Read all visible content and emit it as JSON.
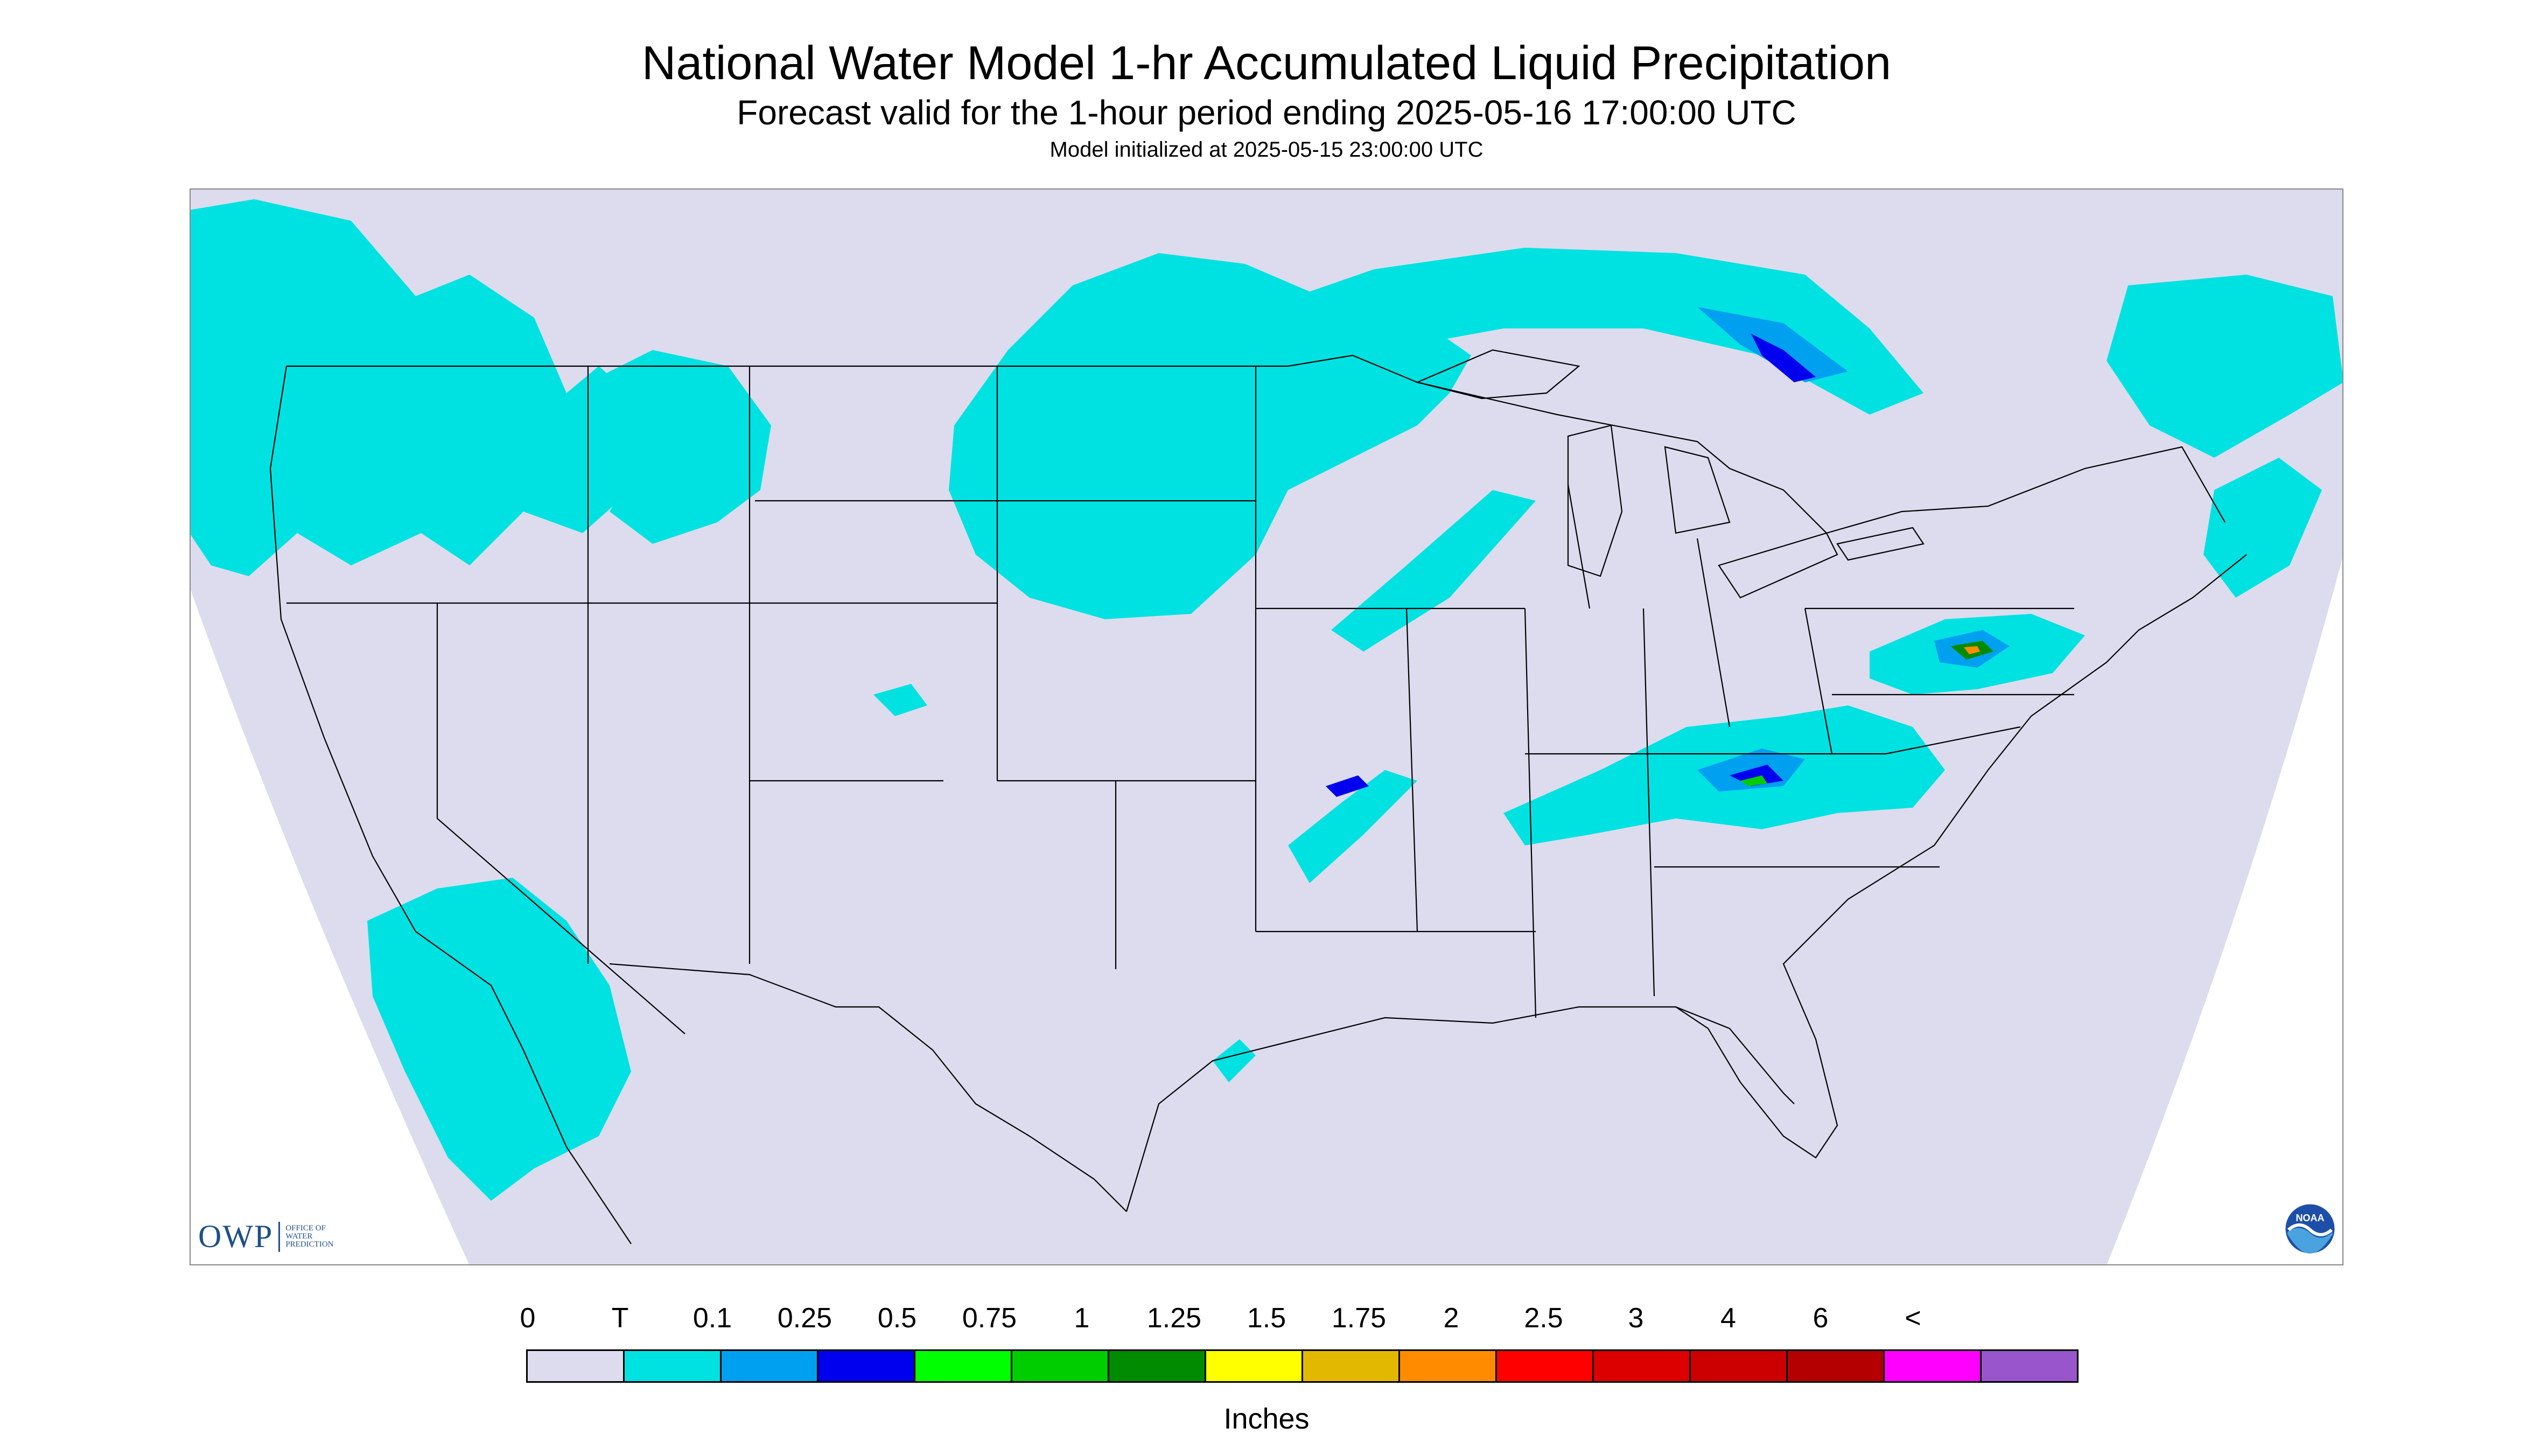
{
  "title": "National Water Model 1-hr Accumulated Liquid Precipitation",
  "subtitle": "Forecast valid for the 1-hour period ending 2025-05-16 17:00:00 UTC",
  "init_line": "Model initialized at 2025-05-15 23:00:00 UTC",
  "legend": {
    "labels": [
      "0",
      "T",
      "0.1",
      "0.25",
      "0.5",
      "0.75",
      "1",
      "1.25",
      "1.5",
      "1.75",
      "2",
      "2.5",
      "3",
      "4",
      "6",
      "<"
    ],
    "colors": [
      "#dcdcee",
      "#00e2e2",
      "#00a0f0",
      "#0000ef",
      "#00ff00",
      "#00cd00",
      "#008b00",
      "#ffff00",
      "#e3b800",
      "#ff8c00",
      "#ff0000",
      "#dd0000",
      "#cc0000",
      "#b40000",
      "#ff00ff",
      "#9955cc"
    ],
    "units": "Inches"
  },
  "logos": {
    "owp_mark": "OWP",
    "owp_lines": [
      "OFFICE OF",
      "WATER",
      "PREDICTION"
    ],
    "noaa_text": "NOAA"
  },
  "map": {
    "background_color": "#dcdcee",
    "outside_color": "#ffffff",
    "boundary_color": "#000000",
    "precip_regions": [
      {
        "name": "pacific-northwest",
        "level": "T"
      },
      {
        "name": "northern-rockies",
        "level": "T"
      },
      {
        "name": "northern-plains-upper-midwest",
        "level": "T"
      },
      {
        "name": "ontario-quebec-band",
        "level": "0.1-0.5"
      },
      {
        "name": "maritimes",
        "level": "T"
      },
      {
        "name": "california-nevada",
        "level": "T"
      },
      {
        "name": "tennessee-ohio-valley",
        "level": "0.1-1"
      },
      {
        "name": "mid-atlantic",
        "level": "0.1-1.75"
      },
      {
        "name": "ozarks-arkansas",
        "level": "T-0.25"
      },
      {
        "name": "texas-coast",
        "level": "T"
      }
    ]
  }
}
